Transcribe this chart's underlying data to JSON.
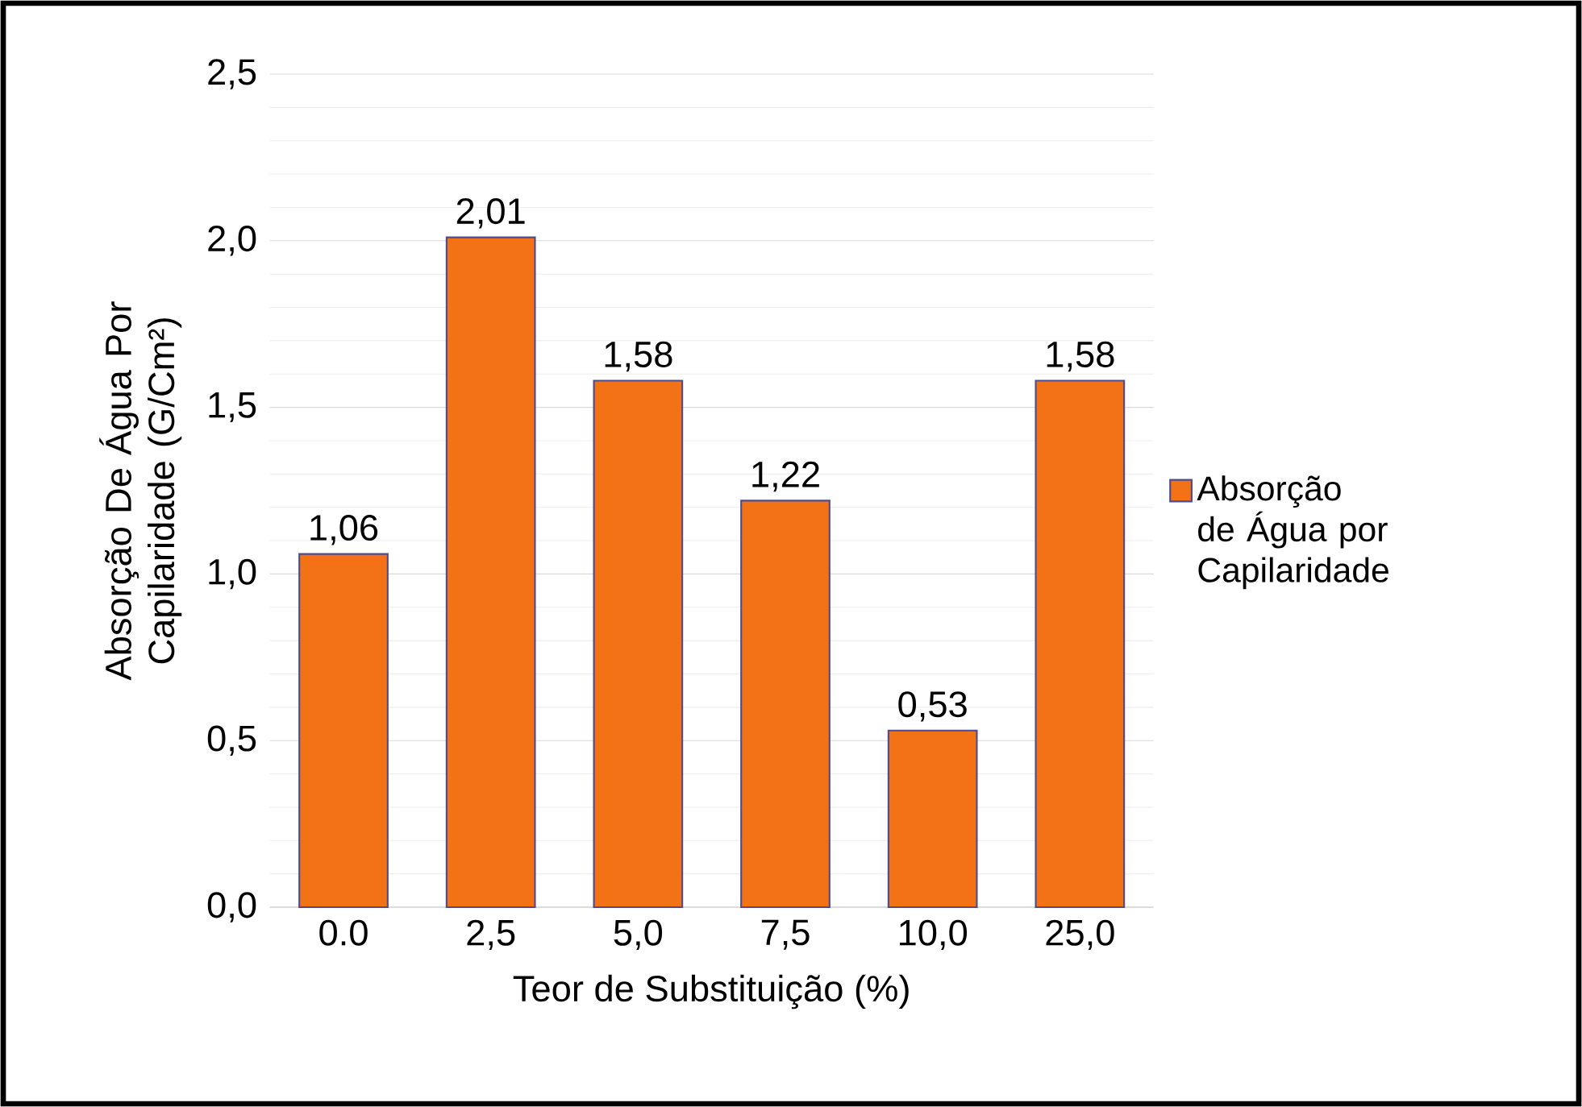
{
  "chart_data": {
    "type": "bar",
    "xlabel": "Teor de Substituição (%)",
    "ylabel": "Absorção De Água Por Capilaridade (G/Cm²)",
    "categories": [
      "0.0",
      "2,5",
      "5,0",
      "7,5",
      "10,0",
      "25,0"
    ],
    "series": [
      {
        "name": "Absorção de Água por Capilaridade",
        "color": "#f47216",
        "values": [
          1.06,
          2.01,
          1.58,
          1.22,
          0.53,
          1.58
        ],
        "value_labels": [
          "1,06",
          "2,01",
          "1,58",
          "1,22",
          "0,53",
          "1,58"
        ]
      }
    ],
    "ylim": [
      0,
      2.5
    ],
    "yticks": [
      {
        "value": 0,
        "label": "0,0"
      },
      {
        "value": 0.5,
        "label": "0,5"
      },
      {
        "value": 1,
        "label": "1,0"
      },
      {
        "value": 1.5,
        "label": "1,5"
      },
      {
        "value": 2,
        "label": "2,0"
      },
      {
        "value": 2.5,
        "label": "2,5"
      }
    ],
    "grid": "y",
    "legend": "right"
  }
}
